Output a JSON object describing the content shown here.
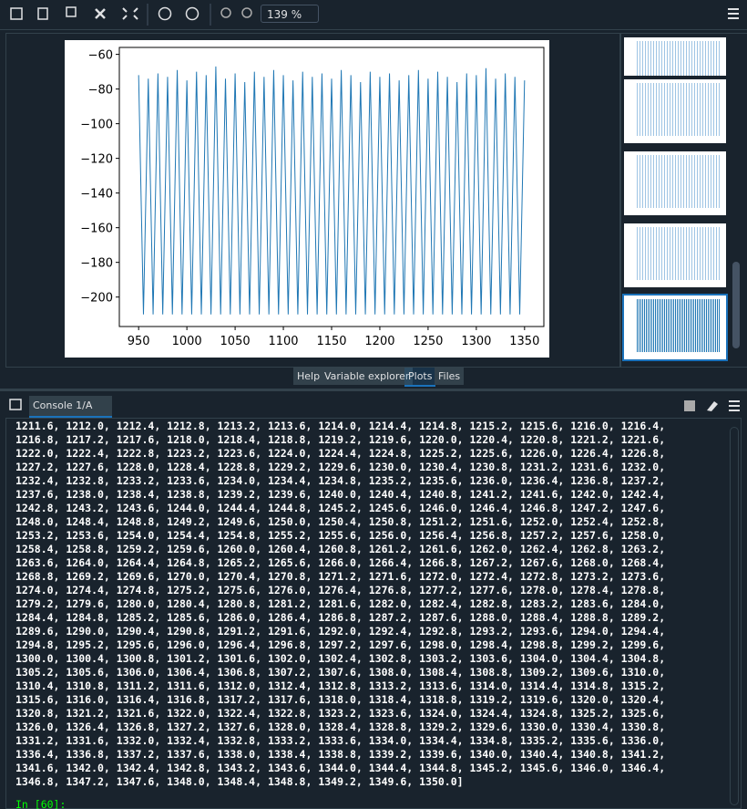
{
  "toolbar": {
    "zoom": "139 %"
  },
  "chart_data": {
    "type": "line",
    "color": "#1f77b4",
    "xlim": [
      930,
      1370
    ],
    "ylim": [
      -217,
      -56
    ],
    "xticks": [
      950,
      1000,
      1050,
      1100,
      1150,
      1200,
      1250,
      1300,
      1350
    ],
    "yticks": [
      {
        "value": -60,
        "label": "−60"
      },
      {
        "value": -80,
        "label": "−80"
      },
      {
        "value": -100,
        "label": "−100"
      },
      {
        "value": -120,
        "label": "−120"
      },
      {
        "value": -140,
        "label": "−140"
      },
      {
        "value": -160,
        "label": "−160"
      },
      {
        "value": -180,
        "label": "−180"
      },
      {
        "value": -200,
        "label": "−200"
      }
    ],
    "x": [
      950,
      955,
      960,
      965,
      970,
      975,
      980,
      985,
      990,
      995,
      1000,
      1005,
      1010,
      1015,
      1020,
      1025,
      1030,
      1035,
      1040,
      1045,
      1050,
      1055,
      1060,
      1065,
      1070,
      1075,
      1080,
      1085,
      1090,
      1095,
      1100,
      1105,
      1110,
      1115,
      1120,
      1125,
      1130,
      1135,
      1140,
      1145,
      1150,
      1155,
      1160,
      1165,
      1170,
      1175,
      1180,
      1185,
      1190,
      1195,
      1200,
      1205,
      1210,
      1215,
      1220,
      1225,
      1230,
      1235,
      1240,
      1245,
      1250,
      1255,
      1260,
      1265,
      1270,
      1275,
      1280,
      1285,
      1290,
      1295,
      1300,
      1305,
      1310,
      1315,
      1320,
      1325,
      1330,
      1335,
      1340,
      1345,
      1350
    ],
    "values": [
      -72,
      -210,
      -74,
      -210,
      -71,
      -210,
      -73,
      -210,
      -69,
      -210,
      -75,
      -210,
      -70,
      -210,
      -72,
      -210,
      -67,
      -210,
      -74,
      -210,
      -71,
      -210,
      -76,
      -210,
      -70,
      -210,
      -73,
      -210,
      -69,
      -210,
      -72,
      -210,
      -75,
      -210,
      -70,
      -210,
      -73,
      -210,
      -71,
      -210,
      -74,
      -210,
      -69,
      -210,
      -72,
      -210,
      -76,
      -210,
      -70,
      -210,
      -73,
      -210,
      -71,
      -210,
      -75,
      -210,
      -72,
      -210,
      -69,
      -210,
      -74,
      -210,
      -70,
      -210,
      -73,
      -210,
      -76,
      -210,
      -71,
      -210,
      -72,
      -210,
      -68,
      -210,
      -74,
      -210,
      -71,
      -210,
      -73,
      -210,
      -75
    ]
  },
  "tabs": [
    "Help",
    "Variable explorer",
    "Plots",
    "Files"
  ],
  "console": {
    "tab": "Console 1/A",
    "lines": [
      "1211.6, 1212.0, 1212.4, 1212.8, 1213.2, 1213.6, 1214.0, 1214.4, 1214.8, 1215.2, 1215.6, 1216.0, 1216.4,",
      "1216.8, 1217.2, 1217.6, 1218.0, 1218.4, 1218.8, 1219.2, 1219.6, 1220.0, 1220.4, 1220.8, 1221.2, 1221.6,",
      "1222.0, 1222.4, 1222.8, 1223.2, 1223.6, 1224.0, 1224.4, 1224.8, 1225.2, 1225.6, 1226.0, 1226.4, 1226.8,",
      "1227.2, 1227.6, 1228.0, 1228.4, 1228.8, 1229.2, 1229.6, 1230.0, 1230.4, 1230.8, 1231.2, 1231.6, 1232.0,",
      "1232.4, 1232.8, 1233.2, 1233.6, 1234.0, 1234.4, 1234.8, 1235.2, 1235.6, 1236.0, 1236.4, 1236.8, 1237.2,",
      "1237.6, 1238.0, 1238.4, 1238.8, 1239.2, 1239.6, 1240.0, 1240.4, 1240.8, 1241.2, 1241.6, 1242.0, 1242.4,",
      "1242.8, 1243.2, 1243.6, 1244.0, 1244.4, 1244.8, 1245.2, 1245.6, 1246.0, 1246.4, 1246.8, 1247.2, 1247.6,",
      "1248.0, 1248.4, 1248.8, 1249.2, 1249.6, 1250.0, 1250.4, 1250.8, 1251.2, 1251.6, 1252.0, 1252.4, 1252.8,",
      "1253.2, 1253.6, 1254.0, 1254.4, 1254.8, 1255.2, 1255.6, 1256.0, 1256.4, 1256.8, 1257.2, 1257.6, 1258.0,",
      "1258.4, 1258.8, 1259.2, 1259.6, 1260.0, 1260.4, 1260.8, 1261.2, 1261.6, 1262.0, 1262.4, 1262.8, 1263.2,",
      "1263.6, 1264.0, 1264.4, 1264.8, 1265.2, 1265.6, 1266.0, 1266.4, 1266.8, 1267.2, 1267.6, 1268.0, 1268.4,",
      "1268.8, 1269.2, 1269.6, 1270.0, 1270.4, 1270.8, 1271.2, 1271.6, 1272.0, 1272.4, 1272.8, 1273.2, 1273.6,",
      "1274.0, 1274.4, 1274.8, 1275.2, 1275.6, 1276.0, 1276.4, 1276.8, 1277.2, 1277.6, 1278.0, 1278.4, 1278.8,",
      "1279.2, 1279.6, 1280.0, 1280.4, 1280.8, 1281.2, 1281.6, 1282.0, 1282.4, 1282.8, 1283.2, 1283.6, 1284.0,",
      "1284.4, 1284.8, 1285.2, 1285.6, 1286.0, 1286.4, 1286.8, 1287.2, 1287.6, 1288.0, 1288.4, 1288.8, 1289.2,",
      "1289.6, 1290.0, 1290.4, 1290.8, 1291.2, 1291.6, 1292.0, 1292.4, 1292.8, 1293.2, 1293.6, 1294.0, 1294.4,",
      "1294.8, 1295.2, 1295.6, 1296.0, 1296.4, 1296.8, 1297.2, 1297.6, 1298.0, 1298.4, 1298.8, 1299.2, 1299.6,",
      "1300.0, 1300.4, 1300.8, 1301.2, 1301.6, 1302.0, 1302.4, 1302.8, 1303.2, 1303.6, 1304.0, 1304.4, 1304.8,",
      "1305.2, 1305.6, 1306.0, 1306.4, 1306.8, 1307.2, 1307.6, 1308.0, 1308.4, 1308.8, 1309.2, 1309.6, 1310.0,",
      "1310.4, 1310.8, 1311.2, 1311.6, 1312.0, 1312.4, 1312.8, 1313.2, 1313.6, 1314.0, 1314.4, 1314.8, 1315.2,",
      "1315.6, 1316.0, 1316.4, 1316.8, 1317.2, 1317.6, 1318.0, 1318.4, 1318.8, 1319.2, 1319.6, 1320.0, 1320.4,",
      "1320.8, 1321.2, 1321.6, 1322.0, 1322.4, 1322.8, 1323.2, 1323.6, 1324.0, 1324.4, 1324.8, 1325.2, 1325.6,",
      "1326.0, 1326.4, 1326.8, 1327.2, 1327.6, 1328.0, 1328.4, 1328.8, 1329.2, 1329.6, 1330.0, 1330.4, 1330.8,",
      "1331.2, 1331.6, 1332.0, 1332.4, 1332.8, 1333.2, 1333.6, 1334.0, 1334.4, 1334.8, 1335.2, 1335.6, 1336.0,",
      "1336.4, 1336.8, 1337.2, 1337.6, 1338.0, 1338.4, 1338.8, 1339.2, 1339.6, 1340.0, 1340.4, 1340.8, 1341.2,",
      "1341.6, 1342.0, 1342.4, 1342.8, 1343.2, 1343.6, 1344.0, 1344.4, 1344.8, 1345.2, 1345.6, 1346.0, 1346.4,",
      "1346.8, 1347.2, 1347.6, 1348.0, 1348.4, 1348.8, 1349.2, 1349.6, 1350.0]"
    ],
    "prompt": "In [60]:"
  }
}
